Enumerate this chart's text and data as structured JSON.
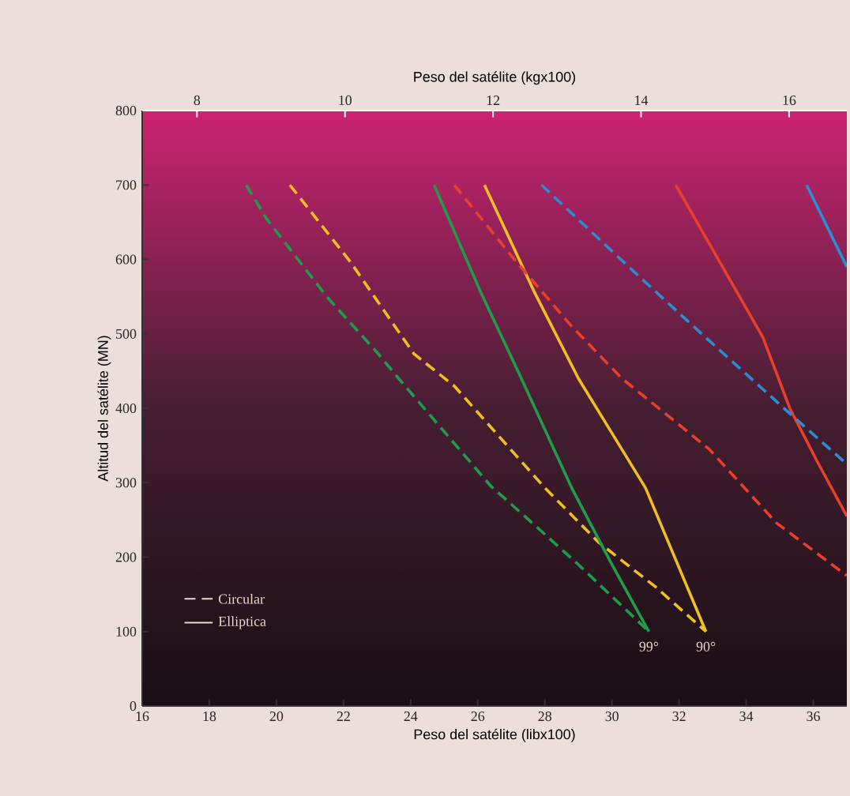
{
  "chart_data": {
    "type": "line",
    "xlabel": "Peso del satélite (libx100)",
    "x2label": "Peso del satélite (kgx100)",
    "ylabel": "Altitud del satélite (MN)",
    "xlim": [
      16,
      37
    ],
    "xticks": [
      16,
      18,
      20,
      22,
      24,
      26,
      28,
      30,
      32,
      34,
      36
    ],
    "x2lim": [
      7.26,
      16.78
    ],
    "x2ticks": [
      8,
      10,
      12,
      14,
      16
    ],
    "ylim": [
      0,
      800
    ],
    "yticks": [
      0,
      100,
      200,
      300,
      400,
      500,
      600,
      700,
      800
    ],
    "grid": false,
    "marker": "none",
    "annotations": [
      "Circular",
      "Elliptica",
      {
        "text": "99°",
        "x": 31.1,
        "y": 100
      },
      {
        "text": "90°",
        "x": 32.8,
        "y": 100
      }
    ],
    "series": [
      {
        "color": "#1e9e4a",
        "line_style": "dashed",
        "x": [
          19.1,
          19.7,
          21.5,
          23.0,
          23.7,
          26.4,
          27.4,
          29.0,
          31.1
        ],
        "values": [
          700,
          655,
          550,
          475,
          437,
          295,
          255,
          190,
          100
        ]
      },
      {
        "color": "#f0c020",
        "line_style": "dashed",
        "x": [
          20.4,
          22.2,
          24.1,
          25.3,
          28.0,
          29.6,
          31.3,
          32.8
        ],
        "values": [
          700,
          597,
          473,
          430,
          293,
          220,
          160,
          100
        ]
      },
      {
        "color": "#1e9e4a",
        "line_style": "solid",
        "x": [
          24.7,
          26.1,
          27.3,
          28.8,
          30.0,
          31.1
        ],
        "values": [
          700,
          555,
          440,
          293,
          190,
          100
        ]
      },
      {
        "color": "#f0c020",
        "line_style": "solid",
        "x": [
          26.2,
          27.7,
          29.0,
          31.0,
          32.8
        ],
        "values": [
          700,
          555,
          440,
          293,
          100
        ]
      },
      {
        "color": "#e8402a",
        "line_style": "dashed",
        "x": [
          25.3,
          27.0,
          28.8,
          30.3,
          32.9,
          34.9,
          37.0
        ],
        "values": [
          700,
          605,
          510,
          440,
          345,
          246,
          175
        ]
      },
      {
        "color": "#e8402a",
        "line_style": "solid",
        "x": [
          31.9,
          34.5,
          35.3,
          36.1,
          37.0
        ],
        "values": [
          700,
          495,
          400,
          330,
          255
        ]
      },
      {
        "color": "#2a8fd0",
        "line_style": "dashed",
        "x": [
          27.9,
          30.5,
          32.6,
          35.2,
          37.0
        ],
        "values": [
          700,
          590,
          503,
          397,
          325
        ]
      },
      {
        "color": "#2a8fd0",
        "line_style": "solid",
        "x": [
          35.8,
          37.0
        ],
        "values": [
          700,
          590
        ]
      }
    ]
  }
}
